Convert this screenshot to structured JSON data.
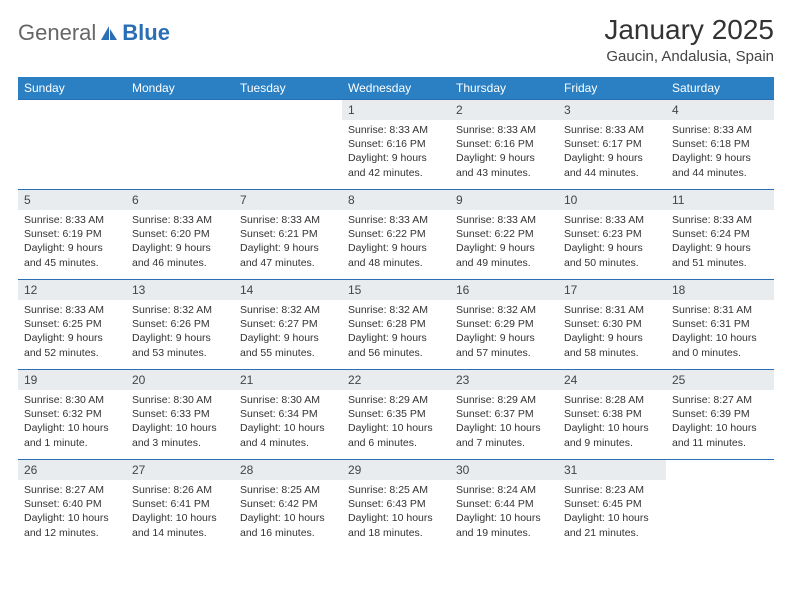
{
  "logo": {
    "part1": "General",
    "part2": "Blue"
  },
  "title": "January 2025",
  "location": "Gaucin, Andalusia, Spain",
  "colors": {
    "header_bg": "#2a80c3",
    "header_text": "#ffffff",
    "daynum_bg": "#e9ecee",
    "border": "#2a6fb5",
    "logo_blue": "#2a6fb5",
    "text": "#333333"
  },
  "dow": [
    "Sunday",
    "Monday",
    "Tuesday",
    "Wednesday",
    "Thursday",
    "Friday",
    "Saturday"
  ],
  "weeks": [
    [
      null,
      null,
      null,
      {
        "n": "1",
        "sr": "8:33 AM",
        "ss": "6:16 PM",
        "dl": "9 hours and 42 minutes."
      },
      {
        "n": "2",
        "sr": "8:33 AM",
        "ss": "6:16 PM",
        "dl": "9 hours and 43 minutes."
      },
      {
        "n": "3",
        "sr": "8:33 AM",
        "ss": "6:17 PM",
        "dl": "9 hours and 44 minutes."
      },
      {
        "n": "4",
        "sr": "8:33 AM",
        "ss": "6:18 PM",
        "dl": "9 hours and 44 minutes."
      }
    ],
    [
      {
        "n": "5",
        "sr": "8:33 AM",
        "ss": "6:19 PM",
        "dl": "9 hours and 45 minutes."
      },
      {
        "n": "6",
        "sr": "8:33 AM",
        "ss": "6:20 PM",
        "dl": "9 hours and 46 minutes."
      },
      {
        "n": "7",
        "sr": "8:33 AM",
        "ss": "6:21 PM",
        "dl": "9 hours and 47 minutes."
      },
      {
        "n": "8",
        "sr": "8:33 AM",
        "ss": "6:22 PM",
        "dl": "9 hours and 48 minutes."
      },
      {
        "n": "9",
        "sr": "8:33 AM",
        "ss": "6:22 PM",
        "dl": "9 hours and 49 minutes."
      },
      {
        "n": "10",
        "sr": "8:33 AM",
        "ss": "6:23 PM",
        "dl": "9 hours and 50 minutes."
      },
      {
        "n": "11",
        "sr": "8:33 AM",
        "ss": "6:24 PM",
        "dl": "9 hours and 51 minutes."
      }
    ],
    [
      {
        "n": "12",
        "sr": "8:33 AM",
        "ss": "6:25 PM",
        "dl": "9 hours and 52 minutes."
      },
      {
        "n": "13",
        "sr": "8:32 AM",
        "ss": "6:26 PM",
        "dl": "9 hours and 53 minutes."
      },
      {
        "n": "14",
        "sr": "8:32 AM",
        "ss": "6:27 PM",
        "dl": "9 hours and 55 minutes."
      },
      {
        "n": "15",
        "sr": "8:32 AM",
        "ss": "6:28 PM",
        "dl": "9 hours and 56 minutes."
      },
      {
        "n": "16",
        "sr": "8:32 AM",
        "ss": "6:29 PM",
        "dl": "9 hours and 57 minutes."
      },
      {
        "n": "17",
        "sr": "8:31 AM",
        "ss": "6:30 PM",
        "dl": "9 hours and 58 minutes."
      },
      {
        "n": "18",
        "sr": "8:31 AM",
        "ss": "6:31 PM",
        "dl": "10 hours and 0 minutes."
      }
    ],
    [
      {
        "n": "19",
        "sr": "8:30 AM",
        "ss": "6:32 PM",
        "dl": "10 hours and 1 minute."
      },
      {
        "n": "20",
        "sr": "8:30 AM",
        "ss": "6:33 PM",
        "dl": "10 hours and 3 minutes."
      },
      {
        "n": "21",
        "sr": "8:30 AM",
        "ss": "6:34 PM",
        "dl": "10 hours and 4 minutes."
      },
      {
        "n": "22",
        "sr": "8:29 AM",
        "ss": "6:35 PM",
        "dl": "10 hours and 6 minutes."
      },
      {
        "n": "23",
        "sr": "8:29 AM",
        "ss": "6:37 PM",
        "dl": "10 hours and 7 minutes."
      },
      {
        "n": "24",
        "sr": "8:28 AM",
        "ss": "6:38 PM",
        "dl": "10 hours and 9 minutes."
      },
      {
        "n": "25",
        "sr": "8:27 AM",
        "ss": "6:39 PM",
        "dl": "10 hours and 11 minutes."
      }
    ],
    [
      {
        "n": "26",
        "sr": "8:27 AM",
        "ss": "6:40 PM",
        "dl": "10 hours and 12 minutes."
      },
      {
        "n": "27",
        "sr": "8:26 AM",
        "ss": "6:41 PM",
        "dl": "10 hours and 14 minutes."
      },
      {
        "n": "28",
        "sr": "8:25 AM",
        "ss": "6:42 PM",
        "dl": "10 hours and 16 minutes."
      },
      {
        "n": "29",
        "sr": "8:25 AM",
        "ss": "6:43 PM",
        "dl": "10 hours and 18 minutes."
      },
      {
        "n": "30",
        "sr": "8:24 AM",
        "ss": "6:44 PM",
        "dl": "10 hours and 19 minutes."
      },
      {
        "n": "31",
        "sr": "8:23 AM",
        "ss": "6:45 PM",
        "dl": "10 hours and 21 minutes."
      },
      null
    ]
  ],
  "labels": {
    "sunrise": "Sunrise:",
    "sunset": "Sunset:",
    "daylight": "Daylight:"
  }
}
